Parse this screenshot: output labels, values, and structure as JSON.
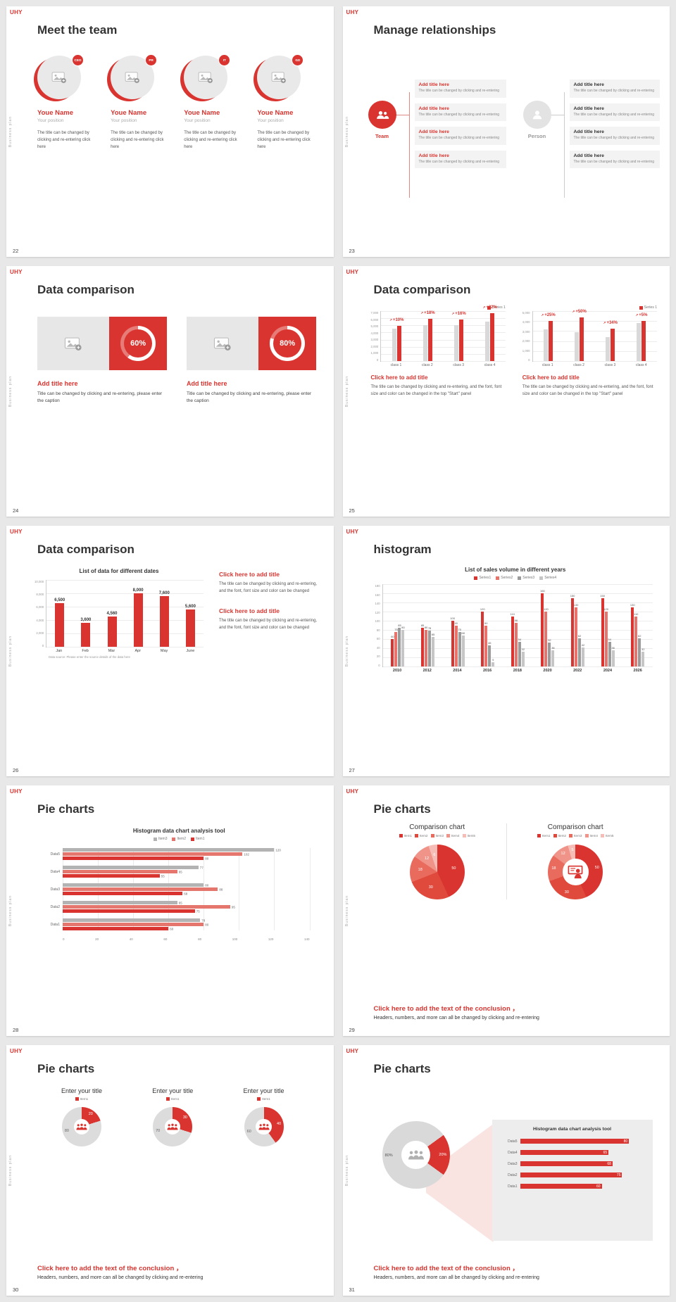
{
  "colors": {
    "accent": "#d9342f",
    "gray": "#b5b5b5"
  },
  "chrome": {
    "logo": "UHY",
    "side_label": "Business plan"
  },
  "conclusion": {
    "head": "Click here to add the text of the conclusion ，",
    "sub": "Headers, numbers, and more can all be changed by clicking and re-entering"
  },
  "slides": {
    "s22": {
      "page": "22",
      "title": "Meet the team",
      "members": [
        {
          "badge": "CEO",
          "name": "Youe Name",
          "position": "Your position",
          "body": "The title can be changed by clicking and re-entering click here"
        },
        {
          "badge": "PR",
          "name": "Youe Name",
          "position": "Your position",
          "body": "The title can be changed by clicking and re-entering click here"
        },
        {
          "badge": "IT",
          "name": "Youe Name",
          "position": "Your position",
          "body": "The title can be changed by clicking and re-entering click here"
        },
        {
          "badge": "GD",
          "name": "Youe Name",
          "position": "Your position",
          "body": "The title can be changed by clicking and re-entering click here"
        }
      ]
    },
    "s23": {
      "page": "23",
      "title": "Manage relationships",
      "team_label": "Team",
      "person_label": "Person",
      "item_title": "Add title here",
      "item_body": "The title can be changed by clicking and re-entering"
    },
    "s24": {
      "page": "24",
      "title": "Data comparison",
      "cards": [
        {
          "ring": 60,
          "pct_label": "60%",
          "heading": "Add title here",
          "body": "Title can be changed by clicking and re-entering, please enter the caption"
        },
        {
          "ring": 80,
          "pct_label": "80%",
          "heading": "Add title here",
          "body": "Title can be changed by clicking and re-entering, please enter the caption"
        }
      ]
    },
    "s25": {
      "page": "25",
      "title": "Data comparison",
      "blocks": [
        {
          "chart_data": {
            "type": "bar",
            "legend": [
              "Series 1"
            ],
            "legend_colors": [
              "#d9342f"
            ],
            "ymax": 7000,
            "yticks": [
              "7,000",
              "6,000",
              "5,000",
              "4,000",
              "3,000",
              "2,000",
              "1,000",
              "0"
            ],
            "categories": [
              "class 1",
              "class 2",
              "class 3",
              "class 4"
            ],
            "series": [
              {
                "name": "base",
                "color": "#d9d9d9",
                "values": [
                  4500,
                  5000,
                  5000,
                  5500
                ]
              },
              {
                "name": "Series 1",
                "color": "#d9342f",
                "values": [
                  4950,
                  5900,
                  5800,
                  6710
                ]
              }
            ],
            "annotations": [
              "+10%",
              "+18%",
              "+16%",
              "+22%"
            ]
          },
          "caption": "Click here to add title",
          "body": "The title can be changed by clicking and re-entering, and the font, font size and color can be changed in the top \"Start\" panel"
        },
        {
          "chart_data": {
            "type": "bar",
            "legend": [
              "Series 1"
            ],
            "legend_colors": [
              "#d9342f"
            ],
            "ymax": 5000,
            "yticks": [
              "5,000",
              "4,000",
              "3,000",
              "2,000",
              "1,000",
              "0"
            ],
            "categories": [
              "class 1",
              "class 2",
              "class 3",
              "class 4"
            ],
            "series": [
              {
                "name": "base",
                "color": "#d9d9d9",
                "values": [
                  3200,
                  2900,
                  2400,
                  3800
                ]
              },
              {
                "name": "Series 1",
                "color": "#d9342f",
                "values": [
                  4000,
                  4350,
                  3210,
                  3990
                ]
              }
            ],
            "annotations": [
              "+25%",
              "+50%",
              "+34%",
              "+5%"
            ]
          },
          "caption": "Click here to add title",
          "body": "The title can be changed by clicking and re-entering, and the font, font size and color can be changed in the top \"Start\" panel"
        }
      ]
    },
    "s26": {
      "page": "26",
      "title": "Data comparison",
      "chart_data": {
        "type": "bar",
        "title": "List of data for different dates",
        "ymax": 10000,
        "yticks": [
          "10,000",
          "8,000",
          "6,000",
          "4,000",
          "2,000",
          "0"
        ],
        "categories": [
          "Jan",
          "Feb",
          "Mar",
          "Apr",
          "May",
          "June"
        ],
        "series": [
          {
            "name": "data",
            "color": "#d9342f",
            "values": [
              6500,
              3600,
              4560,
              8000,
              7600,
              5600
            ],
            "labels": [
              "6,500",
              "3,600",
              "4,560",
              "8,000",
              "7,600",
              "5,600"
            ]
          }
        ],
        "footnote": "Data source: Please enter the source details of the data here"
      },
      "blocks": [
        {
          "caption": "Click here to add title",
          "body": "The title can be changed by clicking and re-entering, and the font, font size and color can be changed"
        },
        {
          "caption": "Click here to add title",
          "body": "The title can be changed by clicking and re-entering, and the font, font size and color can be changed"
        }
      ]
    },
    "s27": {
      "page": "27",
      "title": "histogram",
      "chart_data": {
        "type": "bar",
        "title": "List of sales volume in different years",
        "legend": [
          "Series1",
          "Series2",
          "Series3",
          "Series4"
        ],
        "colors": [
          "#d9342f",
          "#e8736b",
          "#9b9b9b",
          "#c6c6c6"
        ],
        "ymax": 180,
        "yticks": [
          "180",
          "160",
          "140",
          "120",
          "100",
          "80",
          "60",
          "40",
          "20",
          "0"
        ],
        "categories": [
          "2010",
          "2012",
          "2014",
          "2016",
          "2018",
          "2020",
          "2022",
          "2024",
          "2026"
        ],
        "series": [
          {
            "name": "Series1",
            "values": [
              60,
              85,
              100,
              120,
              110,
              160,
              150,
              150,
              130
            ]
          },
          {
            "name": "Series2",
            "values": [
              75,
              80,
              90,
              90,
              96,
              120,
              130,
              120,
              110
            ]
          },
          {
            "name": "Series3",
            "values": [
              85,
              78,
              75,
              46,
              54,
              52,
              62,
              54,
              62
            ]
          },
          {
            "name": "Series4",
            "values": [
              80,
              65,
              68,
              9,
              32,
              36,
              42,
              36,
              32
            ]
          }
        ],
        "show_labels": true
      }
    },
    "s28": {
      "page": "28",
      "title": "Pie charts",
      "chart_data": {
        "type": "bar-horizontal",
        "title": "Histogram data chart analysis tool",
        "legend": [
          "Item3",
          "Item2",
          "Item1"
        ],
        "colors": [
          "#b3b3b3",
          "#e4766e",
          "#d9342f"
        ],
        "xmax": 140,
        "xticks": [
          "0",
          "20",
          "40",
          "60",
          "80",
          "100",
          "120",
          "140"
        ],
        "categories": [
          "Data5",
          "Data4",
          "Data3",
          "Data2",
          "Data1"
        ],
        "series": [
          {
            "name": "Item3",
            "values": [
              120,
              77,
              80,
              65,
              78
            ]
          },
          {
            "name": "Item2",
            "values": [
              102,
              65,
              88,
              95,
              80
            ]
          },
          {
            "name": "Item1",
            "values": [
              80,
              55,
              68,
              75,
              60
            ]
          }
        ]
      }
    },
    "s29": {
      "page": "29",
      "title": "Pie charts",
      "charts": [
        {
          "title": "Comparison chart",
          "legend": [
            "Item1",
            "Item2",
            "Item3",
            "Item4",
            "Item5"
          ],
          "legend_colors": [
            "#d9342f",
            "#df4a3c",
            "#e96b5e",
            "#f09389",
            "#f6bdb6"
          ],
          "chart_data": {
            "type": "pie",
            "values": [
              50,
              30,
              18,
              12,
              6
            ],
            "labels": [
              "50",
              "30",
              "18",
              "12",
              "6"
            ],
            "colors": [
              "#d9342f",
              "#df4a3c",
              "#e96b5e",
              "#f09389",
              "#f6bdb6"
            ],
            "label_r": 0.62
          }
        },
        {
          "title": "Comparison chart",
          "legend": [
            "Item1",
            "Item2",
            "Item3",
            "Item4",
            "Item5"
          ],
          "legend_colors": [
            "#d9342f",
            "#df4a3c",
            "#e96b5e",
            "#f09389",
            "#f6bdb6"
          ],
          "chart_data": {
            "type": "donut",
            "values": [
              50,
              30,
              18,
              12,
              5
            ],
            "labels": [
              "50",
              "30",
              "18",
              "12",
              "5"
            ],
            "colors": [
              "#d9342f",
              "#df4a3c",
              "#e96b5e",
              "#f09389",
              "#f6bdb6"
            ],
            "hole": 26,
            "label_r": 0.8
          }
        }
      ]
    },
    "s30": {
      "page": "30",
      "title": "Pie charts",
      "charts": [
        {
          "title": "Enter your title",
          "legend": [
            "Item1"
          ],
          "legend_colors": [
            "#d9342f"
          ],
          "chart_data": {
            "type": "donut",
            "values": [
              20,
              80
            ],
            "labels": [
              "20",
              "80"
            ],
            "colors": [
              "#d9342f",
              "#dcdcdc"
            ],
            "label_colors": [
              "#fff",
              "#666"
            ],
            "hole": 30,
            "label_r": 0.78,
            "label_angles": [
              36,
              255
            ]
          }
        },
        {
          "title": "Enter your title",
          "legend": [
            "Item1"
          ],
          "legend_colors": [
            "#d9342f"
          ],
          "chart_data": {
            "type": "donut",
            "values": [
              30,
              70
            ],
            "labels": [
              "30",
              "70"
            ],
            "colors": [
              "#d9342f",
              "#dcdcdc"
            ],
            "label_colors": [
              "#fff",
              "#666"
            ],
            "hole": 30,
            "label_r": 0.78,
            "label_angles": [
              54,
              255
            ]
          }
        },
        {
          "title": "Enter your title",
          "legend": [
            "Item1"
          ],
          "legend_colors": [
            "#d9342f"
          ],
          "chart_data": {
            "type": "donut",
            "values": [
              40,
              60
            ],
            "labels": [
              "40",
              "60"
            ],
            "colors": [
              "#d9342f",
              "#dcdcdc"
            ],
            "label_colors": [
              "#fff",
              "#666"
            ],
            "hole": 30,
            "label_r": 0.78,
            "label_angles": [
              80,
              252
            ]
          }
        }
      ]
    },
    "s31": {
      "page": "31",
      "title": "Pie charts",
      "donut_chart": {
        "type": "donut",
        "values": [
          20,
          80
        ],
        "labels": [
          "20%",
          "80%"
        ],
        "colors": [
          "#d9342f",
          "#d9d9d9"
        ],
        "label_colors": [
          "#fff",
          "#555"
        ],
        "from": 54,
        "hole": 29,
        "label_r": 0.8,
        "label_angles": [
          90,
          268
        ]
      },
      "panel_chart": {
        "type": "bar-horizontal",
        "title": "Histogram data chart analysis tool",
        "xmax": 90,
        "categories": [
          "Data5",
          "Data4",
          "Data3",
          "Data2",
          "Data1"
        ],
        "series": [
          {
            "name": "Data",
            "color": "#d9342f",
            "values": [
              80,
              65,
              68,
              75,
              60
            ]
          }
        ],
        "label_in": true
      }
    }
  }
}
